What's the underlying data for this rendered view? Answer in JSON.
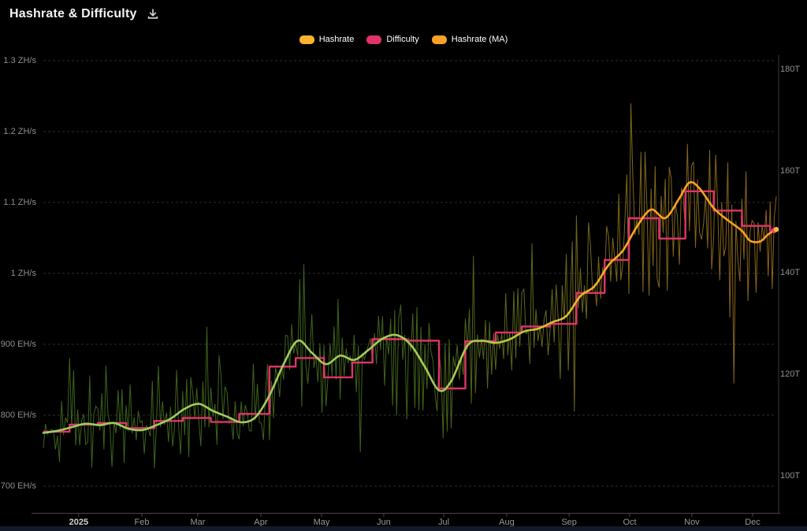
{
  "header": {
    "title": "Hashrate & Difficulty"
  },
  "legend": {
    "items": [
      {
        "label": "Hashrate",
        "color": "#fbb22e"
      },
      {
        "label": "Difficulty",
        "color": "#e03468"
      },
      {
        "label": "Hashrate (MA)",
        "color": "#f9a027"
      }
    ]
  },
  "colors": {
    "background": "#000000",
    "grid": "#2c2c2e",
    "axis": "#46464c",
    "right_axis_line": "#3a3a40",
    "difficulty": "#e03468",
    "difficulty_dot": "#f43f75",
    "ma_dot": "#ffb340",
    "footer_strip": "#131929",
    "raw_gradient": [
      [
        "0%",
        "#44701d"
      ],
      [
        "50%",
        "#4a701c"
      ],
      [
        "68%",
        "#6f751f"
      ],
      [
        "80%",
        "#8f761d"
      ],
      [
        "100%",
        "#a1701c"
      ]
    ],
    "ma_gradient": [
      [
        "0%",
        "#9ccc65"
      ],
      [
        "55%",
        "#a4cb57"
      ],
      [
        "66%",
        "#c3c43e"
      ],
      [
        "73%",
        "#eab52e"
      ],
      [
        "79%",
        "#fca426"
      ],
      [
        "100%",
        "#fb9d24"
      ]
    ]
  },
  "chart_data": {
    "type": "line",
    "title": "Hashrate & Difficulty",
    "legend_position": "top-center",
    "grid": "horizontal-dashed",
    "x_axis": {
      "start": "2024-12-17",
      "end": "2025-12-15",
      "days": 363,
      "ticks": [
        {
          "label": "2025",
          "day": 17.5,
          "strong": true
        },
        {
          "label": "Feb",
          "day": 48.8
        },
        {
          "label": "Mar",
          "day": 76.5
        },
        {
          "label": "Apr",
          "day": 107.7
        },
        {
          "label": "May",
          "day": 137.8
        },
        {
          "label": "Jun",
          "day": 168.6
        },
        {
          "label": "Jul",
          "day": 198.3
        },
        {
          "label": "Aug",
          "day": 229.5
        },
        {
          "label": "Sep",
          "day": 260.4
        },
        {
          "label": "Oct",
          "day": 290.4
        },
        {
          "label": "Nov",
          "day": 321.2
        },
        {
          "label": "Dec",
          "day": 351.3
        }
      ]
    },
    "y_left": {
      "name": "Hashrate",
      "unit": "EH/s",
      "range": [
        662,
        1308
      ],
      "ticks": [
        {
          "label": "700 EH/s",
          "value": 700
        },
        {
          "label": "800 EH/s",
          "value": 800
        },
        {
          "label": "900 EH/s",
          "value": 900
        },
        {
          "label": "1 ZH/s",
          "value": 1000
        },
        {
          "label": "1.1 ZH/s",
          "value": 1100
        },
        {
          "label": "1.2 ZH/s",
          "value": 1200
        },
        {
          "label": "1.3 ZH/s",
          "value": 1300
        }
      ]
    },
    "y_right": {
      "name": "Difficulty",
      "unit": "T",
      "range": [
        93,
        183
      ],
      "ticks": [
        {
          "label": "100T",
          "value": 100
        },
        {
          "label": "120T",
          "value": 120
        },
        {
          "label": "140T",
          "value": 140
        },
        {
          "label": "160T",
          "value": 160
        },
        {
          "label": "180T",
          "value": 180
        }
      ]
    },
    "series": {
      "difficulty": {
        "name": "Difficulty",
        "axis": "right",
        "unit": "T",
        "steps": [
          [
            0,
            108.7
          ],
          [
            13,
            110.1
          ],
          [
            27,
            110.4
          ],
          [
            41,
            109.4
          ],
          [
            55,
            110.8
          ],
          [
            69,
            111.4
          ],
          [
            83,
            110.6
          ],
          [
            97,
            112.2
          ],
          [
            112,
            121.5
          ],
          [
            125,
            123.2
          ],
          [
            139,
            119.4
          ],
          [
            153,
            122.3
          ],
          [
            163,
            126.9
          ],
          [
            180,
            126.6
          ],
          [
            196,
            117.2
          ],
          [
            209,
            126.5
          ],
          [
            224,
            128.2
          ],
          [
            237,
            129.4
          ],
          [
            251,
            129.9
          ],
          [
            264,
            136.0
          ],
          [
            278,
            142.5
          ],
          [
            290,
            150.7
          ],
          [
            305,
            146.7
          ],
          [
            318,
            156.0
          ],
          [
            332,
            152.2
          ],
          [
            346,
            149.2
          ],
          [
            360,
            148.3
          ]
        ]
      },
      "hashrate_ma": {
        "name": "Hashrate (MA)",
        "axis": "left",
        "unit": "EH/s",
        "points": [
          [
            0,
            775
          ],
          [
            7,
            778
          ],
          [
            14,
            783
          ],
          [
            21,
            788
          ],
          [
            28,
            786
          ],
          [
            35,
            789
          ],
          [
            42,
            781
          ],
          [
            49,
            779
          ],
          [
            56,
            786
          ],
          [
            63,
            795
          ],
          [
            70,
            809
          ],
          [
            77,
            816
          ],
          [
            84,
            806
          ],
          [
            91,
            798
          ],
          [
            98,
            790
          ],
          [
            105,
            797
          ],
          [
            112,
            828
          ],
          [
            119,
            872
          ],
          [
            126,
            905
          ],
          [
            133,
            888
          ],
          [
            140,
            872
          ],
          [
            147,
            884
          ],
          [
            154,
            878
          ],
          [
            161,
            892
          ],
          [
            168,
            908
          ],
          [
            175,
            913
          ],
          [
            182,
            899
          ],
          [
            189,
            868
          ],
          [
            196,
            835
          ],
          [
            202,
            848
          ],
          [
            210,
            898
          ],
          [
            217,
            905
          ],
          [
            224,
            902
          ],
          [
            231,
            907
          ],
          [
            238,
            918
          ],
          [
            245,
            922
          ],
          [
            252,
            931
          ],
          [
            259,
            940
          ],
          [
            266,
            968
          ],
          [
            273,
            982
          ],
          [
            280,
            1012
          ],
          [
            287,
            1032
          ],
          [
            294,
            1066
          ],
          [
            301,
            1090
          ],
          [
            308,
            1078
          ],
          [
            315,
            1106
          ],
          [
            320,
            1128
          ],
          [
            325,
            1120
          ],
          [
            332,
            1092
          ],
          [
            339,
            1075
          ],
          [
            346,
            1060
          ],
          [
            350,
            1046
          ],
          [
            355,
            1045
          ],
          [
            359,
            1055
          ],
          [
            363,
            1062
          ]
        ]
      },
      "hashrate": {
        "name": "Hashrate",
        "axis": "left",
        "unit": "EH/s",
        "approximation": "hashrate_ma plus daily variance (estimated from pixels)",
        "noise": {
          "seed": 9,
          "sigma_start": 52,
          "sigma_end": 88,
          "spike_prob": 0.09,
          "spike_mult": 2.0,
          "min": 668,
          "max": 1312
        }
      }
    }
  }
}
